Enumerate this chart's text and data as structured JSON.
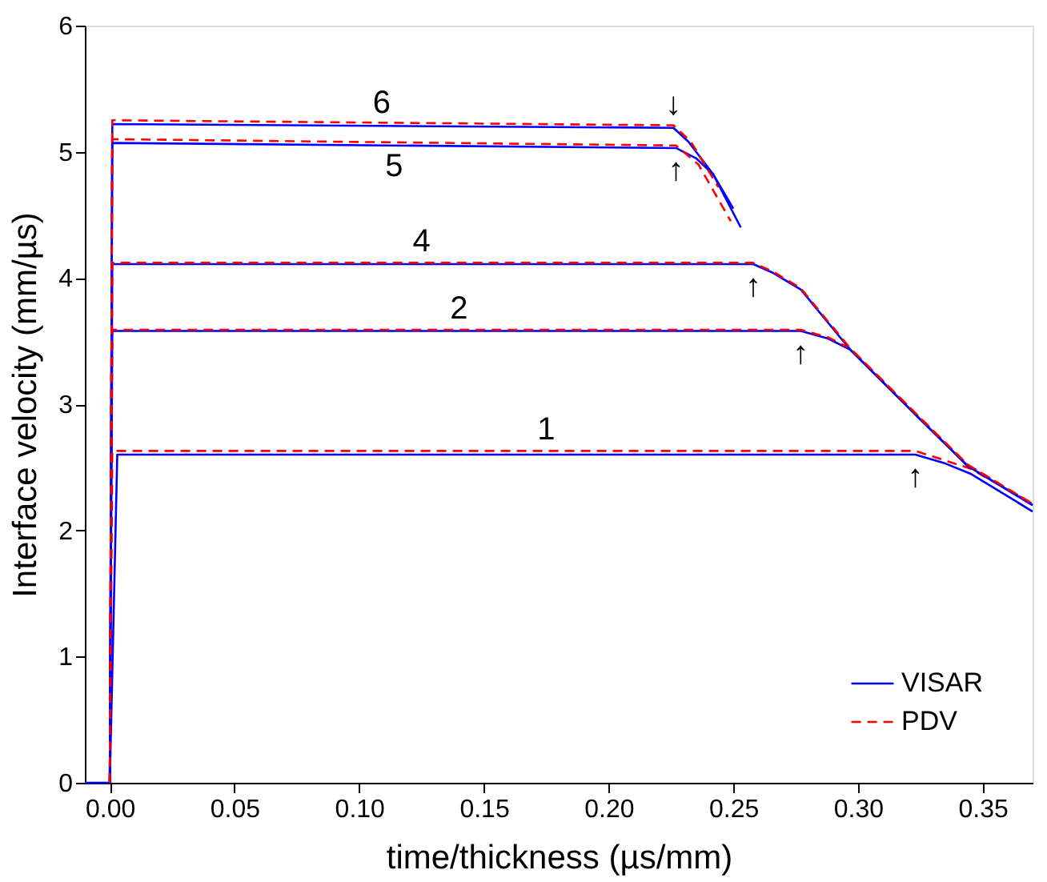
{
  "chart_data": {
    "type": "line",
    "xlabel": "time/thickness (µs/mm)",
    "ylabel": "Interface velocity (mm/µs)",
    "xlim": [
      -0.01,
      0.37
    ],
    "xticks": [
      {
        "value": 0,
        "label": "0.00"
      },
      0.05,
      {
        "value": 0.1,
        "label": "0.10"
      },
      0.15,
      {
        "value": 0.2,
        "label": "0.20"
      },
      0.25,
      {
        "value": 0.3,
        "label": "0.30"
      },
      0.35
    ],
    "ylim": [
      0,
      6
    ],
    "yticks": [
      0,
      1,
      2,
      3,
      4,
      5,
      6
    ],
    "grid": false,
    "legend": "bottom right",
    "marker": "none",
    "series": [
      {
        "name": "VISAR",
        "color": "#0000ff",
        "line_style": "solid",
        "x": [
          -0.01,
          0,
          0.003,
          0.323,
          0.335,
          0.345,
          0.37
        ],
        "values": [
          0,
          0,
          2.6,
          2.6,
          2.53,
          2.45,
          2.15
        ]
      },
      {
        "name": "PDV",
        "color": "#ff0000",
        "line_style": "dashed",
        "x": [
          0,
          0.001,
          0.323,
          0.345,
          0.37
        ],
        "values": [
          0,
          2.63,
          2.63,
          2.49,
          2.21
        ]
      },
      {
        "color": "#0000ff",
        "line_style": "solid",
        "x": [
          0,
          0.001,
          0.277,
          0.288,
          0.297,
          0.326,
          0.344,
          0.37
        ],
        "values": [
          0,
          3.58,
          3.58,
          3.52,
          3.43,
          2.86,
          2.51,
          2.2
        ]
      },
      {
        "color": "#ff0000",
        "line_style": "dashed",
        "x": [
          0,
          0.001,
          0.277,
          0.288,
          0.297,
          0.326,
          0.344,
          0.37
        ],
        "values": [
          0,
          3.59,
          3.59,
          3.53,
          3.44,
          2.87,
          2.52,
          2.21
        ]
      },
      {
        "color": "#0000ff",
        "line_style": "solid",
        "x": [
          0,
          0.001,
          0.258,
          0.266,
          0.277,
          0.297,
          0.326,
          0.344,
          0.37
        ],
        "values": [
          0,
          4.11,
          4.11,
          4.04,
          3.91,
          3.43,
          2.86,
          2.51,
          2.2
        ]
      },
      {
        "color": "#ff0000",
        "line_style": "dashed",
        "x": [
          0,
          0.001,
          0.258,
          0.266,
          0.277,
          0.297,
          0.326,
          0.344,
          0.37
        ],
        "values": [
          0,
          4.12,
          4.12,
          4.05,
          3.92,
          3.44,
          2.87,
          2.52,
          2.21
        ]
      },
      {
        "color": "#0000ff",
        "line_style": "solid",
        "x": [
          0,
          0.001,
          0.227,
          0.235,
          0.242,
          0.25
        ],
        "values": [
          0,
          5.07,
          5.03,
          4.95,
          4.82,
          4.55
        ]
      },
      {
        "color": "#ff0000",
        "line_style": "dashed",
        "x": [
          0,
          0.001,
          0.227,
          0.236,
          0.249
        ],
        "values": [
          0,
          5.1,
          5.05,
          4.9,
          4.45
        ]
      },
      {
        "color": "#0000ff",
        "line_style": "solid",
        "x": [
          0,
          0.001,
          0.226,
          0.232,
          0.242,
          0.253
        ],
        "values": [
          0,
          5.22,
          5.19,
          5.08,
          4.82,
          4.4
        ]
      },
      {
        "color": "#ff0000",
        "line_style": "dashed",
        "x": [
          0,
          0.001,
          0.226,
          0.233,
          0.244
        ],
        "values": [
          0,
          5.25,
          5.21,
          5.08,
          4.72
        ]
      }
    ],
    "annotations": [
      {
        "text": "1",
        "x": 0.175,
        "y": 2.63
      },
      {
        "text": "2",
        "x": 0.14,
        "y": 3.59
      },
      {
        "text": "4",
        "x": 0.125,
        "y": 4.12
      },
      {
        "text": "5",
        "x": 0.114,
        "y": 5.06
      },
      {
        "text": "6",
        "x": 0.109,
        "y": 5.22
      },
      {
        "text": "↓",
        "x": 0.226,
        "y": 5.21
      },
      {
        "text": "↑",
        "x": 0.227,
        "y": 5.03
      },
      {
        "text": "↑",
        "x": 0.258,
        "y": 4.11
      },
      {
        "text": "↑",
        "x": 0.277,
        "y": 3.58
      },
      {
        "text": "↑",
        "x": 0.323,
        "y": 2.6
      }
    ]
  }
}
